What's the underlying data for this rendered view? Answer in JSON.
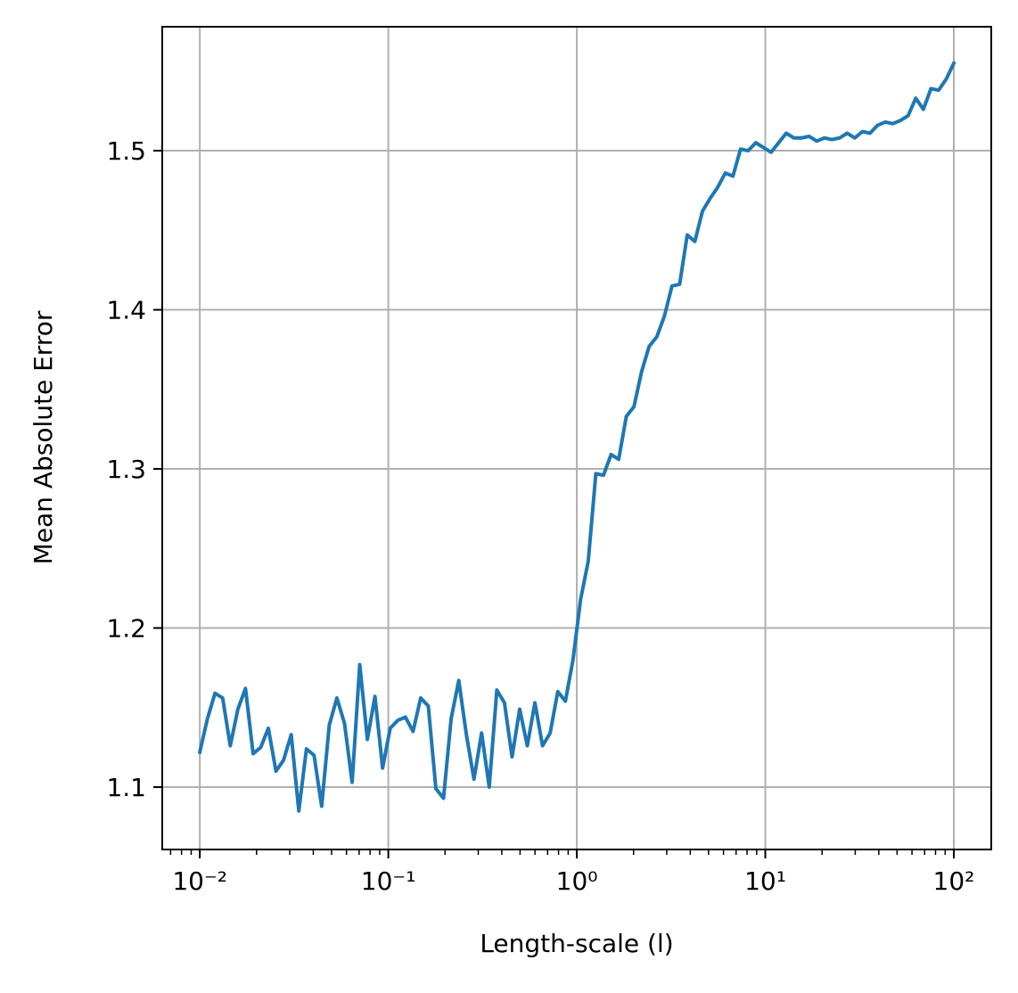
{
  "chart_data": {
    "type": "line",
    "x_label": "Length-scale (l)",
    "y_label": "Mean Absolute Error",
    "x": [
      0.01,
      0.010975,
      0.012045,
      0.013219,
      0.014508,
      0.015923,
      0.017475,
      0.019179,
      0.021049,
      0.023101,
      0.025354,
      0.027826,
      0.030539,
      0.033516,
      0.036784,
      0.04037,
      0.044306,
      0.048626,
      0.053367,
      0.05857,
      0.064281,
      0.070548,
      0.077426,
      0.084975,
      0.09326,
      0.10235,
      0.11233,
      0.12328,
      0.1353,
      0.14849,
      0.16298,
      0.17886,
      0.1963,
      0.21544,
      0.23645,
      0.25951,
      0.28481,
      0.31258,
      0.34305,
      0.3765,
      0.4132,
      0.45349,
      0.4977,
      0.54623,
      0.59948,
      0.65793,
      0.72208,
      0.79248,
      0.86975,
      0.95455,
      1.0476,
      1.1498,
      1.2618,
      1.3848,
      1.5199,
      1.6681,
      1.8307,
      2.0092,
      2.2051,
      2.4201,
      2.6561,
      2.9151,
      3.1993,
      3.5111,
      3.8535,
      4.2292,
      4.6415,
      5.0941,
      5.5907,
      6.1358,
      6.7341,
      7.3906,
      8.1111,
      8.902,
      9.77,
      10.723,
      11.768,
      12.916,
      14.175,
      15.557,
      17.074,
      18.739,
      20.566,
      22.571,
      24.771,
      27.187,
      29.838,
      32.747,
      35.939,
      39.444,
      43.289,
      47.51,
      52.142,
      57.226,
      62.804,
      68.928,
      75.648,
      83.024,
      91.119,
      100
    ],
    "values": [
      1.122,
      1.143,
      1.159,
      1.156,
      1.126,
      1.149,
      1.162,
      1.121,
      1.125,
      1.137,
      1.11,
      1.117,
      1.133,
      1.085,
      1.124,
      1.12,
      1.088,
      1.139,
      1.156,
      1.14,
      1.103,
      1.177,
      1.13,
      1.157,
      1.112,
      1.137,
      1.142,
      1.144,
      1.135,
      1.156,
      1.151,
      1.099,
      1.093,
      1.143,
      1.167,
      1.133,
      1.105,
      1.134,
      1.1,
      1.161,
      1.153,
      1.119,
      1.149,
      1.126,
      1.153,
      1.126,
      1.134,
      1.16,
      1.154,
      1.18,
      1.218,
      1.242,
      1.297,
      1.296,
      1.309,
      1.306,
      1.333,
      1.339,
      1.361,
      1.377,
      1.383,
      1.396,
      1.415,
      1.416,
      1.447,
      1.443,
      1.462,
      1.47,
      1.477,
      1.486,
      1.484,
      1.501,
      1.5,
      1.505,
      1.502,
      1.499,
      1.505,
      1.511,
      1.508,
      1.508,
      1.509,
      1.506,
      1.508,
      1.507,
      1.508,
      1.511,
      1.508,
      1.512,
      1.511,
      1.516,
      1.518,
      1.517,
      1.519,
      1.522,
      1.533,
      1.526,
      1.539,
      1.538,
      1.545,
      1.555
    ],
    "color": "#1f77b4",
    "x_scale": "log",
    "xlim": [
      0.00632,
      158
    ],
    "ylim": [
      1.0608,
      1.5779
    ],
    "xticks": [
      {
        "value": 0.01,
        "label": "10⁻²"
      },
      {
        "value": 0.1,
        "label": "10⁻¹"
      },
      {
        "value": 1,
        "label": "10⁰"
      },
      {
        "value": 10,
        "label": "10¹"
      },
      {
        "value": 100,
        "label": "10²"
      }
    ],
    "yticks": [
      1.1,
      1.2,
      1.3,
      1.4,
      1.5
    ],
    "grid": true
  }
}
